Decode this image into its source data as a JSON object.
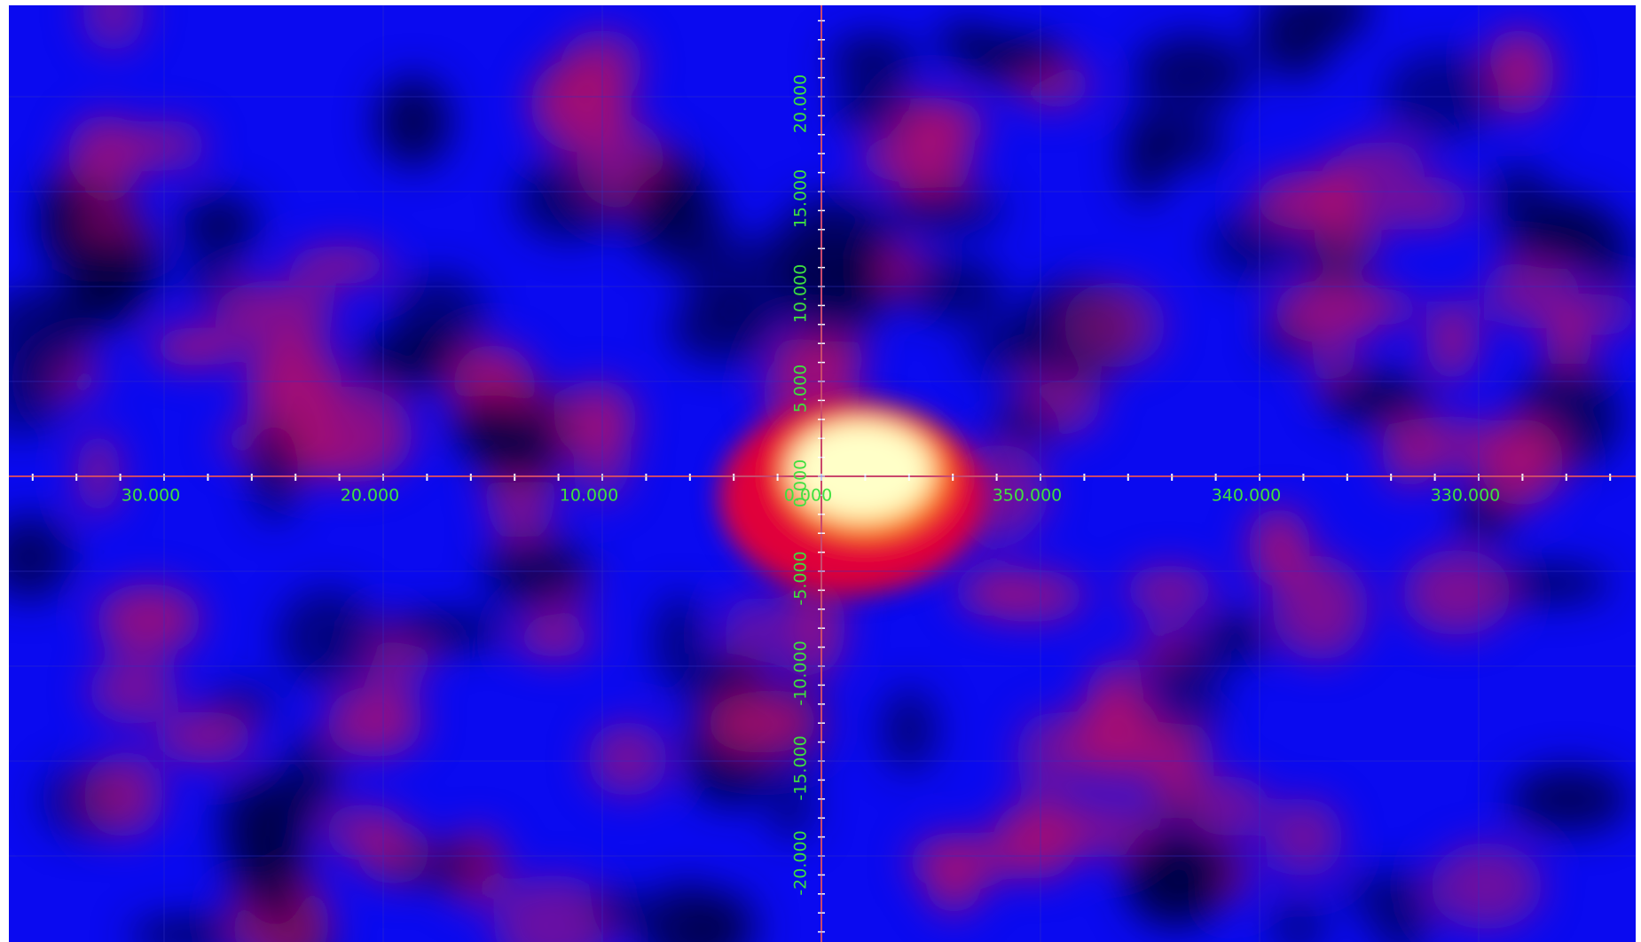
{
  "axes": {
    "x_labels": [
      "30.000",
      "20.000",
      "10.000",
      "0.000",
      "350.000",
      "340.000",
      "330.000"
    ],
    "y_labels": [
      "20.000",
      "15.000",
      "10.000",
      "5.000",
      "0.000",
      "-5.000",
      "-10.000",
      "-15.000",
      "-20.000"
    ]
  }
}
